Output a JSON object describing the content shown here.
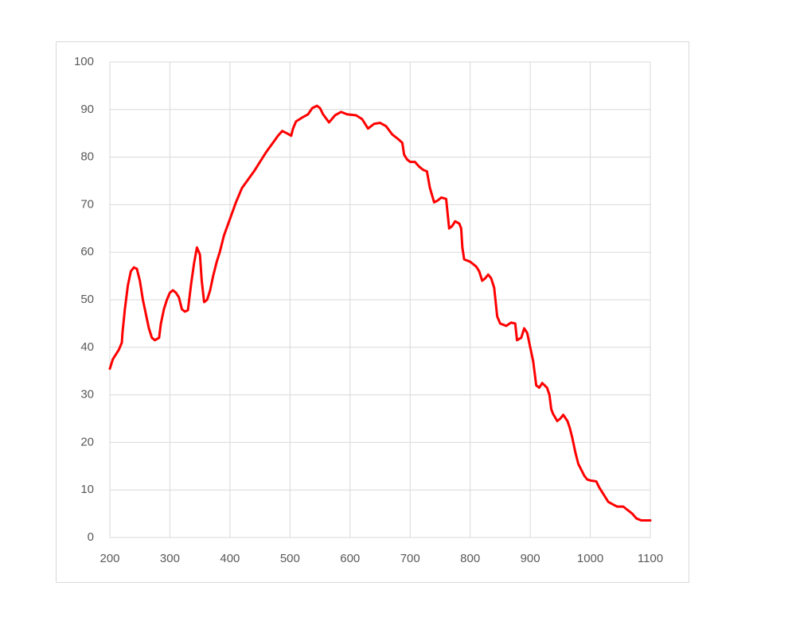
{
  "chart_data": {
    "type": "line",
    "color": "#ff0000",
    "grid": true,
    "xlim": [
      200,
      1100
    ],
    "xticks": [
      200,
      300,
      400,
      500,
      600,
      700,
      800,
      900,
      1000,
      1100
    ],
    "ylim": [
      0,
      100
    ],
    "yticks": [
      0,
      10,
      20,
      30,
      40,
      50,
      60,
      70,
      80,
      90,
      100
    ],
    "x": [
      200,
      205,
      210,
      215,
      220,
      221,
      225,
      230,
      235,
      240,
      245,
      250,
      255,
      260,
      265,
      270,
      275,
      282,
      285,
      290,
      295,
      300,
      305,
      310,
      315,
      320,
      325,
      330,
      335,
      340,
      345,
      350,
      353,
      357,
      362,
      367,
      372,
      378,
      383,
      390,
      400,
      410,
      420,
      440,
      460,
      480,
      487,
      495,
      502,
      505,
      510,
      520,
      530,
      537,
      545,
      550,
      555,
      565,
      575,
      585,
      595,
      610,
      620,
      630,
      640,
      650,
      660,
      670,
      680,
      687,
      690,
      695,
      700,
      708,
      715,
      722,
      728,
      733,
      740,
      745,
      752,
      760,
      765,
      770,
      775,
      782,
      785,
      787,
      790,
      800,
      810,
      815,
      820,
      825,
      830,
      835,
      840,
      845,
      850,
      860,
      868,
      875,
      878,
      885,
      890,
      895,
      900,
      905,
      910,
      915,
      920,
      928,
      932,
      935,
      938,
      945,
      950,
      955,
      962,
      966,
      970,
      975,
      980,
      990,
      995,
      1000,
      1010,
      1015,
      1020,
      1030,
      1040,
      1045,
      1055,
      1060,
      1070,
      1077,
      1085,
      1100
    ],
    "values": [
      35.5,
      37.5,
      38.5,
      39.5,
      41,
      43,
      48,
      53,
      56,
      56.8,
      56.5,
      54,
      50,
      47,
      44,
      42,
      41.5,
      42,
      45,
      48,
      50,
      51.5,
      52,
      51.5,
      50.5,
      48,
      47.5,
      47.8,
      53,
      57.5,
      61,
      59.5,
      54,
      49.5,
      50,
      52,
      55,
      58,
      60,
      63.5,
      67,
      70.5,
      73.5,
      77,
      81,
      84.5,
      85.5,
      85,
      84.5,
      86,
      87.5,
      88.3,
      89,
      90.3,
      90.8,
      90.3,
      89,
      87.3,
      88.8,
      89.5,
      89,
      88.8,
      88,
      86,
      87,
      87.2,
      86.5,
      84.8,
      83.8,
      83,
      80.5,
      79.5,
      79,
      79,
      78,
      77.3,
      77,
      73.5,
      70.5,
      70.8,
      71.5,
      71.2,
      65,
      65.5,
      66.5,
      66,
      65,
      61,
      58.5,
      58,
      57,
      56,
      54,
      54.5,
      55.3,
      54.5,
      52.5,
      46.5,
      45,
      44.5,
      45.2,
      45,
      41.5,
      42,
      44,
      43,
      40,
      37,
      32,
      31.5,
      32.5,
      31.5,
      30,
      27,
      26,
      24.5,
      25,
      25.8,
      24.5,
      23,
      21,
      18,
      15.5,
      13,
      12.2,
      12,
      11.8,
      10.5,
      9.5,
      7.5,
      6.8,
      6.5,
      6.5,
      6,
      5,
      4,
      3.6,
      3.6
    ]
  }
}
